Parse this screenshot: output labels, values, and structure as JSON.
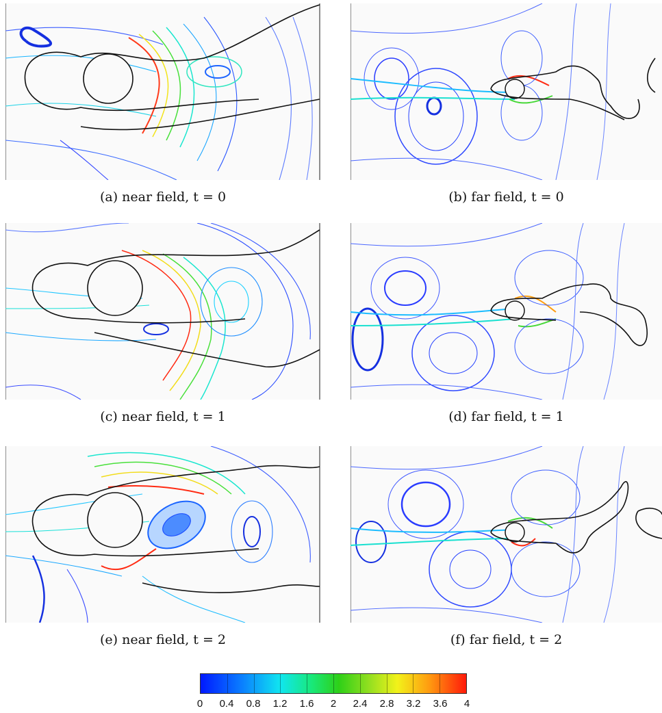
{
  "panels": [
    {
      "id": "a",
      "caption": "(a) near field, t = 0"
    },
    {
      "id": "b",
      "caption": "(b) far field, t = 0"
    },
    {
      "id": "c",
      "caption": "(c) near field, t = 1"
    },
    {
      "id": "d",
      "caption": "(d) far field, t = 1"
    },
    {
      "id": "e",
      "caption": "(e) near field, t = 2"
    },
    {
      "id": "f",
      "caption": "(f) far field, t = 2"
    }
  ],
  "colorbar": {
    "ticks": [
      "0",
      "0.4",
      "0.8",
      "1.2",
      "1.6",
      "2",
      "2.4",
      "2.8",
      "3.2",
      "3.6",
      "4"
    ],
    "min": 0,
    "max": 4,
    "colors": [
      "#0019ff",
      "#0a7bff",
      "#10e6f0",
      "#19e878",
      "#2ed018",
      "#98e020",
      "#f2f21a",
      "#ff9c10",
      "#ff1a0a"
    ]
  }
}
